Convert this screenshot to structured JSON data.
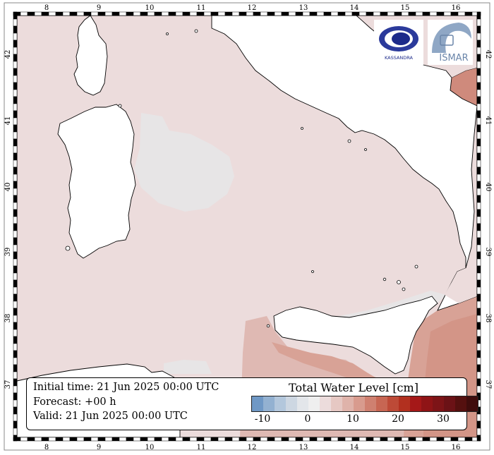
{
  "map": {
    "top_axis": {
      "lon_labels": [
        "8",
        "9",
        "10",
        "11",
        "12",
        "13",
        "14",
        "15",
        "16"
      ]
    },
    "bottom_axis": {
      "lon_labels": [
        "8",
        "9",
        "10",
        "11",
        "12",
        "13",
        "14",
        "15",
        "16"
      ]
    },
    "left_axis": {
      "lat_labels": [
        "42",
        "41",
        "40",
        "39",
        "38",
        "37"
      ]
    },
    "right_axis": {
      "lat_labels": [
        "42",
        "41",
        "40",
        "39",
        "38",
        "37"
      ]
    },
    "colors": {
      "sea_base": "#ecdcdc",
      "sea_near_zero": "#e7e5e6",
      "sea_positive_light": "#dfb9b3",
      "sea_positive_mid": "#d8a296",
      "sea_positive_strong": "#cf8a7c",
      "land": "#ffffff",
      "coastline": "#000000"
    }
  },
  "info": {
    "initial_time": "Initial time: 21 Jun 2025 00:00 UTC",
    "forecast": "Forecast: +00 h",
    "valid": "Valid: 21 Jun 2025 00:00 UTC"
  },
  "legend": {
    "title": "Total Water Level [cm]",
    "tick_labels": [
      "-10",
      "0",
      "10",
      "20",
      "30"
    ],
    "colors": [
      "#6f98c5",
      "#93b1d1",
      "#b3c7dc",
      "#cdd7e2",
      "#e3e6ea",
      "#efefef",
      "#ecdcdc",
      "#e6c8c3",
      "#dfb3aa",
      "#d89b8e",
      "#cf8070",
      "#c76653",
      "#bd4a37",
      "#b2301f",
      "#a51818",
      "#8f1416",
      "#7d1417",
      "#6b1216",
      "#55100f",
      "#3f0c0c"
    ]
  },
  "logos": {
    "left_logo_text": "KASSANDRA",
    "right_logo_text": "ISMAR"
  }
}
